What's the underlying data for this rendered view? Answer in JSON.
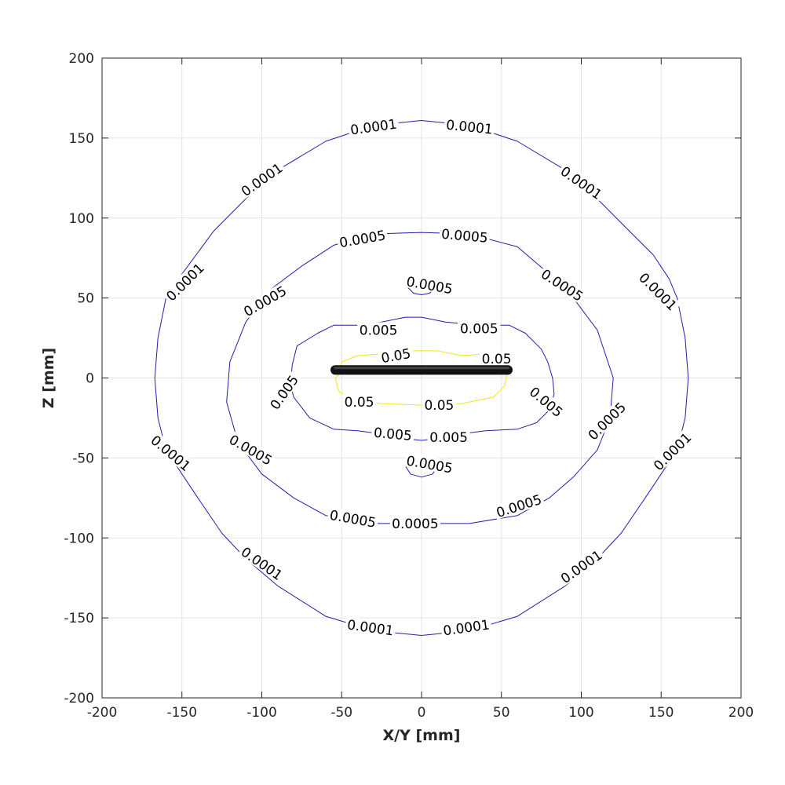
{
  "chart_data": {
    "type": "contour",
    "xlabel": "X/Y [mm]",
    "ylabel": "Z [mm]",
    "xlim": [
      -200,
      200
    ],
    "ylim": [
      -200,
      200
    ],
    "xticks": [
      "-200",
      "-150",
      "-100",
      "-50",
      "0",
      "50",
      "100",
      "150",
      "200"
    ],
    "yticks": [
      "-200",
      "-150",
      "-100",
      "-50",
      "0",
      "50",
      "100",
      "150",
      "200"
    ],
    "grid": true,
    "colors": {
      "blue_contour": "#1f1fa8",
      "yellow_contour": "#f2e41a",
      "device": "#111111",
      "grid": "#e3e3e3",
      "axis": "#262626"
    },
    "device": {
      "label": "",
      "x_range": [
        -57,
        57
      ],
      "z_range": [
        2,
        8
      ]
    },
    "levels": [
      {
        "level": "0.0001",
        "color": "blue",
        "points": [
          [
            0,
            161
          ],
          [
            30,
            158
          ],
          [
            60,
            148
          ],
          [
            90,
            130
          ],
          [
            110,
            112
          ],
          [
            130,
            92
          ],
          [
            145,
            77
          ],
          [
            155,
            62
          ],
          [
            160,
            50
          ],
          [
            165,
            25
          ],
          [
            167,
            0
          ],
          [
            165,
            -25
          ],
          [
            160,
            -45
          ],
          [
            150,
            -60
          ],
          [
            140,
            -75
          ],
          [
            125,
            -97
          ],
          [
            110,
            -113
          ],
          [
            90,
            -130
          ],
          [
            60,
            -149
          ],
          [
            30,
            -158
          ],
          [
            0,
            -161
          ],
          [
            -30,
            -158
          ],
          [
            -60,
            -149
          ],
          [
            -90,
            -130
          ],
          [
            -110,
            -113
          ],
          [
            -125,
            -97
          ],
          [
            -140,
            -75
          ],
          [
            -150,
            -60
          ],
          [
            -160,
            -45
          ],
          [
            -165,
            -25
          ],
          [
            -167,
            0
          ],
          [
            -165,
            25
          ],
          [
            -160,
            50
          ],
          [
            -150,
            65
          ],
          [
            -130,
            92
          ],
          [
            -110,
            112
          ],
          [
            -90,
            130
          ],
          [
            -60,
            148
          ],
          [
            -30,
            158
          ]
        ],
        "labels": [
          [
            -30,
            157,
            -8
          ],
          [
            30,
            157,
            6
          ],
          [
            -100,
            124,
            -35
          ],
          [
            100,
            122,
            35
          ],
          [
            -148,
            60,
            -45
          ],
          [
            148,
            54,
            45
          ],
          [
            -157,
            -47,
            40
          ],
          [
            157,
            -46,
            -45
          ],
          [
            -100,
            -116,
            35
          ],
          [
            100,
            -118,
            -35
          ],
          [
            -32,
            -156,
            8
          ],
          [
            28,
            -156,
            -8
          ]
        ]
      },
      {
        "level": "0.0005",
        "color": "blue",
        "points": [
          [
            0,
            91
          ],
          [
            30,
            90
          ],
          [
            60,
            82
          ],
          [
            80,
            65
          ],
          [
            95,
            50
          ],
          [
            110,
            30
          ],
          [
            120,
            0
          ],
          [
            118,
            -25
          ],
          [
            110,
            -45
          ],
          [
            95,
            -62
          ],
          [
            80,
            -75
          ],
          [
            60,
            -86
          ],
          [
            30,
            -91
          ],
          [
            0,
            -91
          ],
          [
            -30,
            -91
          ],
          [
            -60,
            -86
          ],
          [
            -80,
            -75
          ],
          [
            -100,
            -60
          ],
          [
            -115,
            -40
          ],
          [
            -122,
            -15
          ],
          [
            -120,
            10
          ],
          [
            -110,
            35
          ],
          [
            -95,
            55
          ],
          [
            -75,
            70
          ],
          [
            -55,
            83
          ],
          [
            -30,
            90
          ]
        ],
        "labels": [
          [
            -37,
            87,
            -10
          ],
          [
            27,
            89,
            5
          ],
          [
            -98,
            48,
            -30
          ],
          [
            88,
            58,
            33
          ],
          [
            -107,
            -45,
            30
          ],
          [
            116,
            -27,
            -45
          ],
          [
            -43,
            -88,
            10
          ],
          [
            -4,
            -91,
            0
          ],
          [
            61,
            -80,
            -18
          ]
        ]
      },
      {
        "level": "0.0005",
        "color": "blue",
        "points": [
          [
            -9,
            57
          ],
          [
            -5,
            53
          ],
          [
            0,
            52
          ],
          [
            5,
            53
          ],
          [
            9,
            57
          ]
        ],
        "labels": [
          [
            5,
            58,
            10
          ]
        ]
      },
      {
        "level": "0.0005",
        "color": "blue",
        "points": [
          [
            -10,
            -55
          ],
          [
            -7,
            -60
          ],
          [
            0,
            -62
          ],
          [
            7,
            -60
          ],
          [
            10,
            -55
          ]
        ],
        "labels": [
          [
            5,
            -54,
            10
          ]
        ]
      },
      {
        "level": "0.005",
        "color": "blue",
        "points": [
          [
            0,
            38
          ],
          [
            15,
            35
          ],
          [
            35,
            33
          ],
          [
            55,
            33
          ],
          [
            65,
            28
          ],
          [
            75,
            18
          ],
          [
            79,
            10
          ],
          [
            82,
            0
          ],
          [
            83,
            -10
          ],
          [
            80,
            -20
          ],
          [
            72,
            -28
          ],
          [
            60,
            -32
          ],
          [
            40,
            -33
          ],
          [
            25,
            -35
          ],
          [
            10,
            -38
          ],
          [
            0,
            -39
          ],
          [
            -10,
            -38
          ],
          [
            -25,
            -35
          ],
          [
            -40,
            -33
          ],
          [
            -55,
            -32
          ],
          [
            -70,
            -25
          ],
          [
            -80,
            -12
          ],
          [
            -82,
            -5
          ],
          [
            -81,
            8
          ],
          [
            -78,
            20
          ],
          [
            -65,
            28
          ],
          [
            -55,
            33
          ],
          [
            -40,
            33
          ],
          [
            -25,
            35
          ],
          [
            -10,
            38
          ]
        ],
        "labels": [
          [
            -27,
            30,
            0
          ],
          [
            36,
            31,
            0
          ],
          [
            -86,
            -9,
            -55
          ],
          [
            78,
            -15,
            40
          ],
          [
            -18,
            -35,
            5
          ],
          [
            17,
            -37,
            0
          ]
        ]
      },
      {
        "level": "0.05",
        "color": "yellow",
        "points": [
          [
            -52,
            2
          ],
          [
            -50,
            10
          ],
          [
            -40,
            14
          ],
          [
            -25,
            15
          ],
          [
            -10,
            17
          ],
          [
            0,
            17
          ],
          [
            10,
            17
          ],
          [
            25,
            14
          ],
          [
            40,
            15
          ],
          [
            50,
            10
          ],
          [
            54,
            5
          ],
          [
            52,
            -5
          ],
          [
            45,
            -12
          ],
          [
            25,
            -16
          ],
          [
            0,
            -17
          ],
          [
            -25,
            -16
          ],
          [
            -45,
            -14
          ],
          [
            -52,
            -8
          ],
          [
            -54,
            0
          ]
        ],
        "labels": [
          [
            -16,
            14,
            -10
          ],
          [
            47,
            12,
            0
          ],
          [
            -39,
            -15,
            0
          ],
          [
            11,
            -17,
            0
          ]
        ]
      }
    ]
  }
}
